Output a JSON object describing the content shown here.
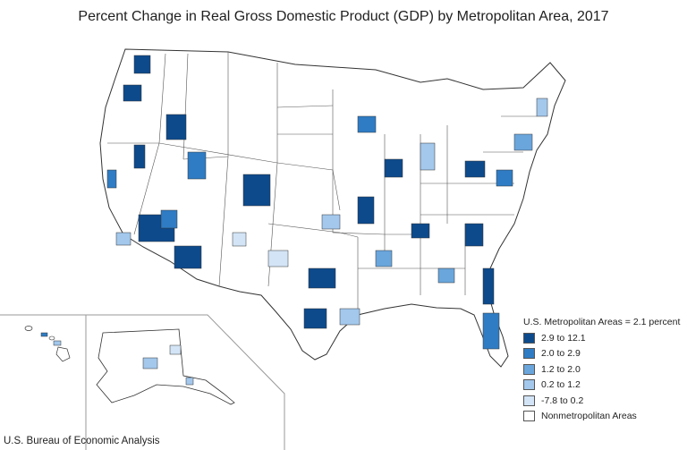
{
  "title": "Percent Change in Real Gross Domestic Product (GDP) by Metropolitan Area, 2017",
  "source": "U.S. Bureau of Economic Analysis",
  "legend": {
    "title": "U.S. Metropolitan Areas = 2.1 percent",
    "items": [
      {
        "label": "2.9 to 12.1",
        "color": "#0d4a8c"
      },
      {
        "label": "2.0 to 2.9",
        "color": "#2f7cc4"
      },
      {
        "label": "1.2 to 2.0",
        "color": "#6aa6dc"
      },
      {
        "label": "0.2 to 1.2",
        "color": "#a3c8ec"
      },
      {
        "label": "-7.8 to 0.2",
        "color": "#d3e4f6"
      },
      {
        "label": "Nonmetropolitan Areas",
        "color": "#ffffff"
      }
    ]
  },
  "map": {
    "regions": [
      "Contiguous United States",
      "Hawaii",
      "Alaska"
    ]
  }
}
